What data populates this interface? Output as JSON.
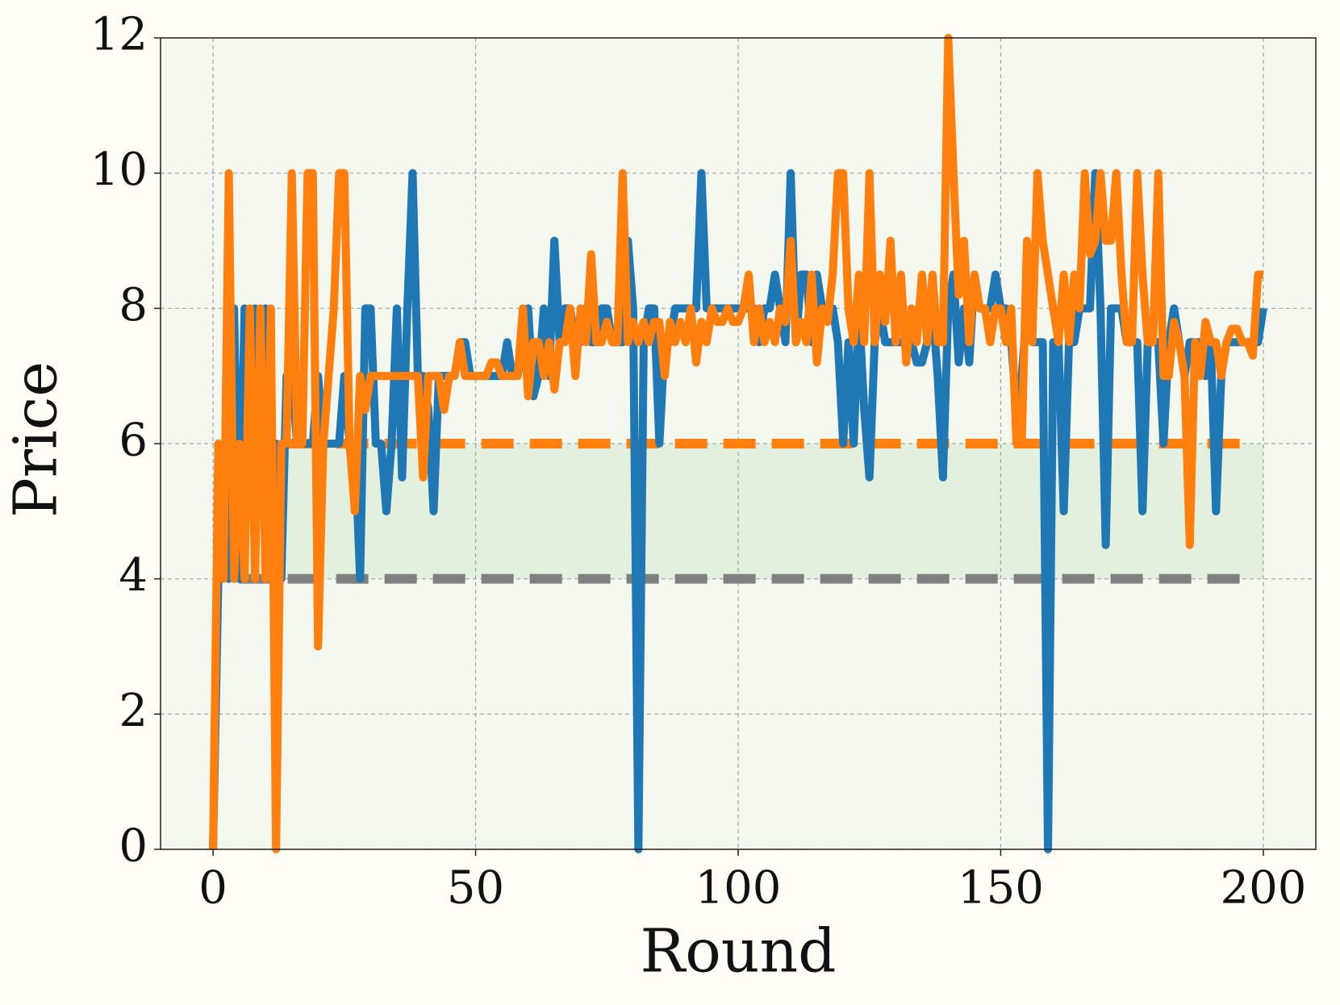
{
  "chart_data": {
    "type": "line",
    "x_label": "Round",
    "y_label": "Price",
    "xlim": [
      -10,
      210
    ],
    "ylim": [
      0,
      12
    ],
    "xticks": [
      0,
      50,
      100,
      150,
      200
    ],
    "yticks": [
      0,
      2,
      4,
      6,
      8,
      10,
      12
    ],
    "grid": true,
    "band": {
      "y": [
        4,
        6
      ],
      "x": [
        2,
        200
      ],
      "color": "#dcecd6"
    },
    "hlines": [
      {
        "y": 4,
        "x": [
          5,
          197
        ],
        "color": "#808080"
      },
      {
        "y": 6,
        "x": [
          5,
          197
        ],
        "color": "#ff7f0e"
      }
    ],
    "x": [
      0,
      1,
      2,
      3,
      4,
      5,
      6,
      7,
      8,
      9,
      10,
      11,
      12,
      13,
      14,
      15,
      16,
      17,
      18,
      19,
      20,
      21,
      22,
      23,
      24,
      25,
      26,
      27,
      28,
      29,
      30,
      31,
      32,
      33,
      34,
      35,
      36,
      37,
      38,
      39,
      40,
      41,
      42,
      43,
      44,
      45,
      46,
      47,
      48,
      49,
      50,
      51,
      52,
      53,
      54,
      55,
      56,
      57,
      58,
      59,
      60,
      61,
      62,
      63,
      64,
      65,
      66,
      67,
      68,
      69,
      70,
      71,
      72,
      73,
      74,
      75,
      76,
      77,
      78,
      79,
      80,
      81,
      82,
      83,
      84,
      85,
      86,
      87,
      88,
      89,
      90,
      91,
      92,
      93,
      94,
      95,
      96,
      97,
      98,
      99,
      100,
      101,
      102,
      103,
      104,
      105,
      106,
      107,
      108,
      109,
      110,
      111,
      112,
      113,
      114,
      115,
      116,
      117,
      118,
      119,
      120,
      121,
      122,
      123,
      124,
      125,
      126,
      127,
      128,
      129,
      130,
      131,
      132,
      133,
      134,
      135,
      136,
      137,
      138,
      139,
      140,
      141,
      142,
      143,
      144,
      145,
      146,
      147,
      148,
      149,
      150,
      151,
      152,
      153,
      154,
      155,
      156,
      157,
      158,
      159,
      160,
      161,
      162,
      163,
      164,
      165,
      166,
      167,
      168,
      169,
      170,
      171,
      172,
      173,
      174,
      175,
      176,
      177,
      178,
      179,
      180,
      181,
      182,
      183,
      184,
      185,
      186,
      187,
      188,
      189,
      190,
      191,
      192,
      193,
      194,
      195,
      196,
      197,
      198,
      199,
      200
    ],
    "series": [
      {
        "color": "#1f77b4",
        "values": [
          0,
          4,
          6,
          4,
          8,
          4,
          8,
          6,
          8,
          6,
          8,
          6,
          6,
          4,
          7,
          7,
          6,
          6,
          6,
          6,
          7,
          6,
          6,
          6,
          6,
          7,
          6,
          6,
          4,
          8,
          8,
          6,
          6,
          5,
          6,
          8,
          5.5,
          8,
          10,
          7,
          7,
          6.5,
          5,
          7,
          7,
          7,
          7,
          7.5,
          7.5,
          7,
          7,
          7,
          7,
          7,
          7,
          7,
          7.5,
          7,
          7,
          7.5,
          8,
          6.7,
          7,
          8,
          7,
          9,
          7.5,
          8,
          8,
          7.5,
          7.5,
          8,
          7.5,
          7.5,
          8,
          8,
          7.5,
          7.5,
          7.5,
          9,
          8,
          0,
          7.5,
          8,
          8,
          6,
          7.5,
          7.5,
          8,
          8,
          8,
          8,
          8,
          10,
          8,
          8,
          8,
          8,
          8,
          8,
          8,
          8,
          8,
          8,
          7.5,
          8,
          8,
          8.5,
          8,
          7.5,
          10,
          7.5,
          8.5,
          8.5,
          7.5,
          8.5,
          8,
          8,
          8,
          7.5,
          6,
          7.5,
          6,
          8,
          6.5,
          5.5,
          7.5,
          8,
          7.5,
          7.5,
          7.5,
          7.5,
          7.5,
          7.5,
          7.2,
          7.2,
          7.5,
          8,
          7,
          5.5,
          8,
          8.5,
          7.2,
          8,
          7.2,
          8.5,
          8,
          8,
          8,
          8.5,
          8,
          8,
          7.5,
          6.5,
          7,
          8,
          7.5,
          7.5,
          7.5,
          0,
          7.5,
          7.5,
          5,
          7.5,
          7.5,
          8,
          8,
          8,
          10,
          8,
          4.5,
          8,
          8,
          8,
          7.5,
          7.5,
          7.5,
          5,
          7.5,
          7.5,
          7.5,
          6,
          7.5,
          8,
          7.5,
          7,
          7.5,
          7.5,
          7.5,
          7,
          7.5,
          5,
          7,
          7.5,
          7.5,
          7.5,
          7.5,
          7.5,
          7.5,
          7.5,
          8
        ]
      },
      {
        "color": "#ff7f0e",
        "values": [
          0,
          6,
          4,
          10,
          4,
          6,
          4,
          8,
          4,
          8,
          4,
          8,
          0,
          6,
          6,
          10,
          6,
          6,
          10,
          10,
          3,
          6,
          7,
          8,
          10,
          10,
          6,
          5,
          7,
          6.5,
          7,
          7,
          7,
          7,
          7,
          7,
          7,
          7,
          7,
          7,
          5.5,
          7,
          7,
          7,
          6.5,
          7,
          7,
          7.5,
          7,
          7,
          7,
          7,
          7,
          7.2,
          7.2,
          7,
          7,
          7,
          7,
          8,
          6.7,
          7.5,
          7.5,
          7,
          7.5,
          6.8,
          7.5,
          7.5,
          8,
          7,
          8,
          7.5,
          8.8,
          7.5,
          7.5,
          7.8,
          7.5,
          7.5,
          10,
          7.5,
          7.8,
          7.5,
          7.8,
          7.5,
          7.8,
          7.8,
          7,
          7.8,
          7.5,
          7.8,
          7.5,
          8,
          7.2,
          7.8,
          7.5,
          8,
          7.8,
          7.8,
          8,
          7.8,
          7.8,
          8,
          8.5,
          7.5,
          8,
          7.5,
          7.8,
          7.5,
          8,
          7.8,
          9,
          7.5,
          7.8,
          7.5,
          8.5,
          7.2,
          8,
          7.8,
          8.5,
          10,
          10,
          8,
          7.5,
          8.5,
          7.5,
          10,
          7.5,
          8.5,
          7.8,
          9,
          7.5,
          8.5,
          7.2,
          8,
          7.5,
          8.5,
          7.5,
          8.5,
          7.5,
          7.5,
          12,
          10,
          8.2,
          9,
          7.5,
          8.5,
          8,
          8,
          7.5,
          8,
          8,
          7.5,
          8,
          6,
          6,
          9,
          7.5,
          10,
          9,
          8.5,
          8,
          7.5,
          8.5,
          7.5,
          8.5,
          8,
          10,
          8.8,
          9,
          10,
          9,
          9,
          10,
          8.5,
          7.5,
          7.5,
          10,
          8.5,
          7.5,
          7.5,
          10,
          7,
          7,
          7.8,
          7.5,
          7,
          4.5,
          7.5,
          7,
          7.8,
          7.5,
          7.5,
          7,
          7.5,
          7.7,
          7.7,
          7.5,
          7.5,
          7.3,
          8.5,
          8.5
        ]
      }
    ]
  }
}
